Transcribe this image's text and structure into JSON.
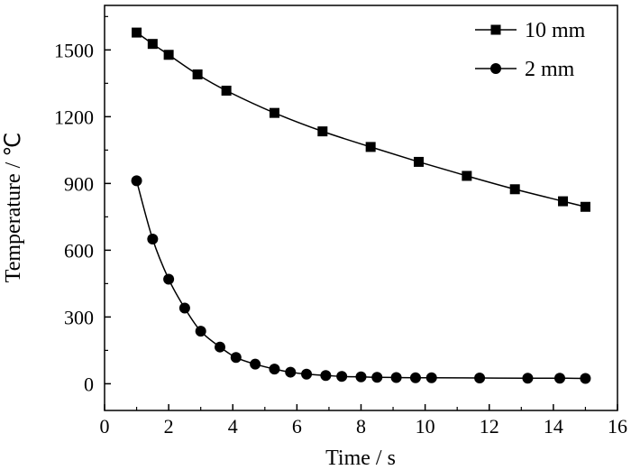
{
  "chart_data": {
    "type": "line",
    "title": "",
    "xlabel": "Time / s",
    "ylabel": "Temperature / ℃",
    "xlim": [
      0,
      16
    ],
    "ylim": [
      -120,
      1700
    ],
    "xticks": [
      0,
      2,
      4,
      6,
      8,
      10,
      12,
      14,
      16
    ],
    "yticks": [
      0,
      300,
      600,
      900,
      1200,
      1500
    ],
    "grid": false,
    "legend_position": "top-right",
    "series": [
      {
        "name": "10 mm",
        "marker": "square",
        "color": "#000000",
        "x": [
          1.0,
          1.5,
          2.0,
          2.9,
          3.8,
          5.3,
          6.8,
          8.3,
          9.8,
          11.3,
          12.8,
          14.3,
          15.0
        ],
        "y": [
          1578,
          1527,
          1478,
          1390,
          1317,
          1217,
          1134,
          1064,
          997,
          934,
          874,
          820,
          795
        ]
      },
      {
        "name": "2 mm",
        "marker": "circle",
        "color": "#000000",
        "x": [
          1.0,
          1.5,
          2.0,
          2.5,
          3.0,
          3.6,
          4.1,
          4.7,
          5.3,
          5.8,
          6.3,
          6.9,
          7.4,
          8.0,
          8.5,
          9.1,
          9.7,
          10.2,
          11.7,
          13.2,
          14.2,
          15.0
        ],
        "y": [
          912,
          650,
          470,
          340,
          236,
          165,
          118,
          88,
          66,
          52,
          43,
          37,
          33,
          31,
          29,
          28,
          27,
          27,
          26,
          25,
          25,
          24
        ]
      }
    ]
  }
}
